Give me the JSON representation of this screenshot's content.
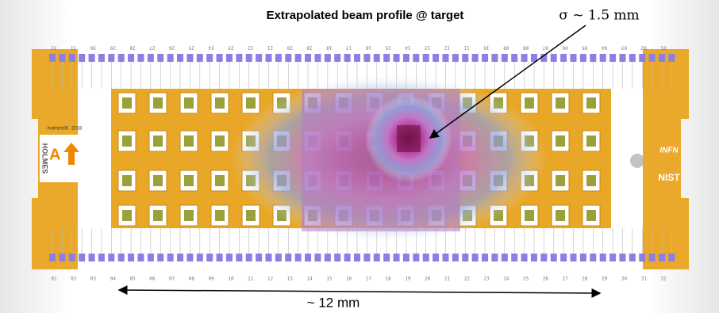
{
  "header": {
    "title": "Extrapolated beam profile @ target",
    "sigma_label": "σ ~ 1.5 mm"
  },
  "scale_label": "~ 12 mm",
  "top_pad_labels": [
    "32",
    "31",
    "30",
    "29",
    "28",
    "27",
    "26",
    "25",
    "24",
    "23",
    "22",
    "21",
    "20",
    "19",
    "18",
    "17",
    "16",
    "15",
    "14",
    "13",
    "12",
    "11",
    "10",
    "09",
    "08",
    "07",
    "06",
    "05",
    "04",
    "03",
    "02",
    "01"
  ],
  "bottom_pad_labels": [
    "01",
    "02",
    "03",
    "04",
    "05",
    "06",
    "07",
    "08",
    "09",
    "10",
    "11",
    "12",
    "13",
    "14",
    "15",
    "16",
    "17",
    "18",
    "19",
    "20",
    "21",
    "22",
    "23",
    "24",
    "25",
    "26",
    "27",
    "28",
    "29",
    "30",
    "31",
    "32"
  ],
  "chip": {
    "chip_id": "holmes06",
    "year": "2018",
    "array_label": "A",
    "logo_left": "HOLMES",
    "logo_right_top": "INFN",
    "logo_right_bottom": "NIST"
  }
}
